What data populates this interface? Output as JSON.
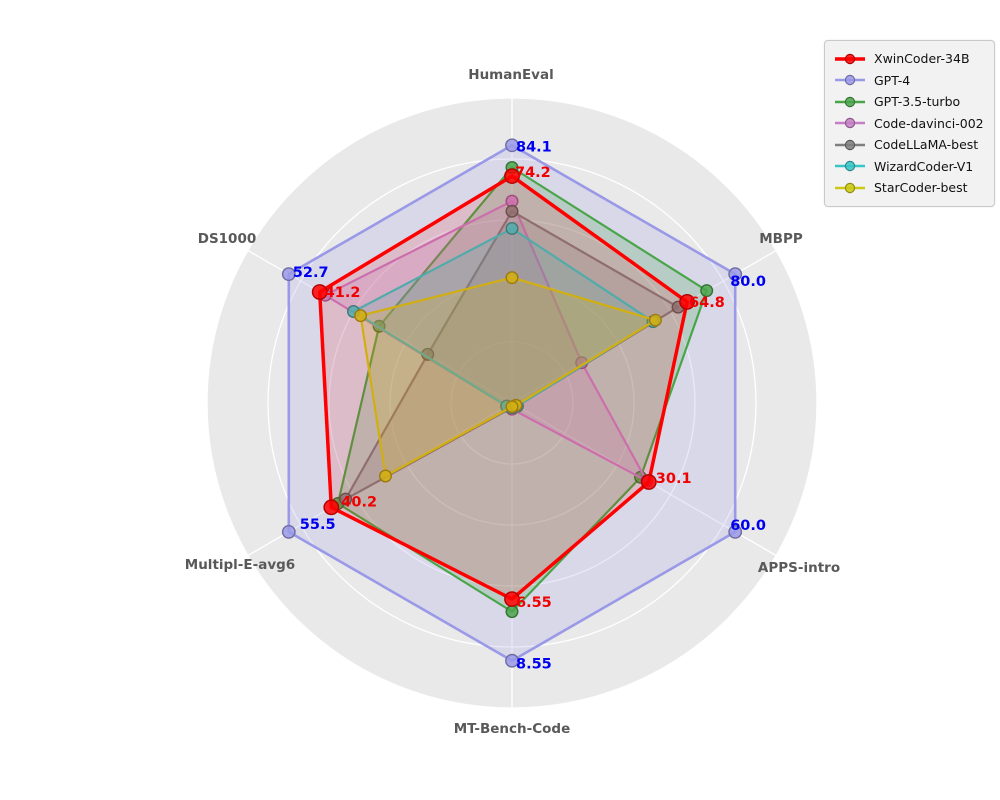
{
  "chart_data": {
    "type": "radar",
    "axes": [
      "HumanEval",
      "MBPP",
      "APPS-intro",
      "MT-Bench-Code",
      "Multipl-E-avg6",
      "DS1000"
    ],
    "axis_max": [
      84.1,
      80.0,
      60.0,
      8.55,
      55.5,
      52.7
    ],
    "grid_rings": [
      0.2,
      0.4,
      0.6,
      0.8,
      1.0
    ],
    "legend_position": "top-right",
    "series": [
      {
        "name": "XwinCoder-34B",
        "color": "#ff0000",
        "label_color": "#f00000",
        "labels_shown": true,
        "display_labels": [
          "74.2",
          "64.8",
          "30.1",
          "6.55",
          "40.2",
          "41.2"
        ],
        "values": [
          74.2,
          64.8,
          30.1,
          6.55,
          40.2,
          41.2
        ],
        "radial_fractions": [
          0.744,
          0.663,
          0.518,
          0.643,
          0.684,
          0.728
        ]
      },
      {
        "name": "GPT-4",
        "color": "#9a99e8",
        "label_color": "#0000f0",
        "labels_shown": true,
        "display_labels": [
          "84.1",
          "80.0",
          "60.0",
          "8.55",
          "55.5",
          "52.7"
        ],
        "values": [
          84.1,
          80.0,
          60.0,
          8.55,
          55.5,
          52.7
        ],
        "radial_fractions": [
          0.845,
          0.845,
          0.845,
          0.845,
          0.845,
          0.845
        ]
      },
      {
        "name": "GPT-3.5-turbo",
        "color": "#4aa54a",
        "labels_shown": false,
        "values": [
          76.8,
          71.8,
          28.3,
          6.9,
          38.0,
          26.0
        ],
        "radial_fractions": [
          0.772,
          0.737,
          0.487,
          0.684,
          0.659,
          0.503
        ]
      },
      {
        "name": "Code-davinci-002",
        "color": "#c67fc6",
        "labels_shown": false,
        "values": [
          65.8,
          27.0,
          29.6,
          0.2,
          0.2,
          39.0
        ],
        "radial_fractions": [
          0.662,
          0.264,
          0.51,
          0.02,
          0.02,
          0.707
        ]
      },
      {
        "name": "CodeLLaMA-best",
        "color": "#7f7f7f",
        "labels_shown": false,
        "values": [
          62.2,
          61.6,
          0.2,
          0.1,
          35.0,
          10.0
        ],
        "radial_fractions": [
          0.629,
          0.629,
          0.02,
          0.015,
          0.63,
          0.319
        ]
      },
      {
        "name": "WizardCoder-V1",
        "color": "#38c5c5",
        "labels_shown": false,
        "values": [
          57.3,
          51.8,
          0.2,
          0.1,
          0.2,
          27.7
        ],
        "radial_fractions": [
          0.572,
          0.534,
          0.02,
          0.015,
          0.02,
          0.6
        ]
      },
      {
        "name": "StarCoder-best",
        "color": "#ccc914",
        "labels_shown": false,
        "values": [
          40.8,
          52.7,
          0.1,
          0.1,
          20.1,
          24.9
        ],
        "radial_fractions": [
          0.411,
          0.543,
          0.015,
          0.012,
          0.479,
          0.573
        ]
      }
    ],
    "draw_order": [
      "GPT-4",
      "GPT-3.5-turbo",
      "Code-davinci-002",
      "CodeLLaMA-best",
      "WizardCoder-V1",
      "StarCoder-best",
      "XwinCoder-34B"
    ],
    "legend_order": [
      "XwinCoder-34B",
      "GPT-4",
      "GPT-3.5-turbo",
      "Code-davinci-002",
      "CodeLLaMA-best",
      "WizardCoder-V1",
      "StarCoder-best"
    ]
  }
}
